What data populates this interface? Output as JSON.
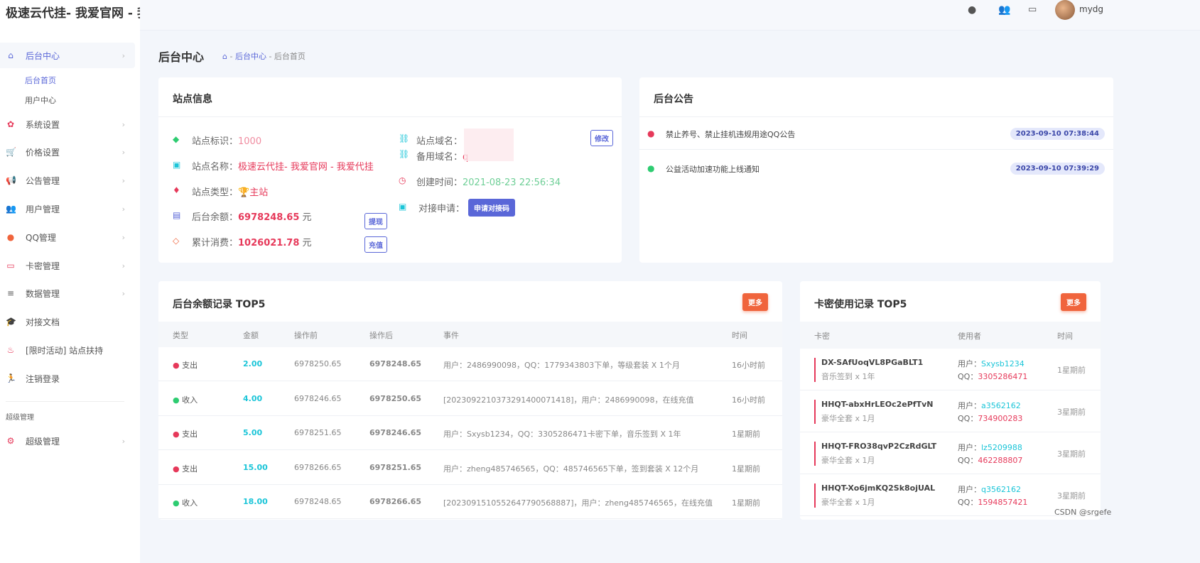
{
  "brand": "极速云代挂- 我爱官网 - 我爱代挂",
  "header": {
    "icons": [
      "qq-icon",
      "users-icon",
      "card-icon"
    ],
    "username": "mydg"
  },
  "sidebar": {
    "items": [
      {
        "label": "后台中心",
        "icon": "store-icon",
        "active": true,
        "subs": [
          "后台首页",
          "用户中心"
        ]
      },
      {
        "label": "系统设置",
        "icon": "gear-icon"
      },
      {
        "label": "价格设置",
        "icon": "cart-icon"
      },
      {
        "label": "公告管理",
        "icon": "megaphone-icon"
      },
      {
        "label": "用户管理",
        "icon": "users-icon"
      },
      {
        "label": "QQ管理",
        "icon": "qq-icon"
      },
      {
        "label": "卡密管理",
        "icon": "card-icon"
      },
      {
        "label": "数据管理",
        "icon": "list-icon"
      },
      {
        "label": "对接文档",
        "icon": "graduation-cap-icon"
      },
      {
        "label": "[限时活动] 站点扶持",
        "icon": "cake-icon"
      },
      {
        "label": "注销登录",
        "icon": "run-icon"
      }
    ],
    "section": "超级管理",
    "super": {
      "label": "超级管理",
      "icon": "cogs-icon"
    }
  },
  "page": {
    "title": "后台中心",
    "breadcrumb": [
      "后台中心",
      "后台首页"
    ]
  },
  "site": {
    "title": "站点信息",
    "id_label": "站点标识：",
    "id": "1000",
    "name_label": "站点名称：",
    "name": "极速云代挂- 我爱官网 - 我爱代挂",
    "type_label": "站点类型：",
    "type": "主站",
    "balance_label": "后台余额：",
    "balance": "6978248.65",
    "unit": "元",
    "spent_label": "累计消费：",
    "spent": "1026021.78",
    "withdraw": "提现",
    "recharge": "充值",
    "domain_label": "站点域名：",
    "backup_label": "备用域名：",
    "backup_value": "q",
    "edit": "修改",
    "created_label": "创建时间：",
    "created": "2021-08-23 22:56:34",
    "dock_label": "对接申请：",
    "dock_btn": "申请对接码"
  },
  "notice": {
    "title": "后台公告",
    "items": [
      {
        "text": "禁止养号、禁止挂机违规用途QQ公告",
        "time": "2023-09-10 07:38:44",
        "color": "#e6395a"
      },
      {
        "text": "公益活动加速功能上线通知",
        "time": "2023-09-10 07:39:29",
        "color": "#2ecc71"
      }
    ]
  },
  "balance_log": {
    "title": "后台余额记录 TOP5",
    "more": "更多",
    "headers": [
      "类型",
      "金额",
      "操作前",
      "操作后",
      "事件",
      "时间"
    ],
    "rows": [
      {
        "type": "支出",
        "kind": "out",
        "amount": "2.00",
        "before": "6978250.65",
        "after": "6978248.65",
        "event": "用户：2486990098，QQ：1779343803下单，等级套装 X 1个月",
        "time": "16小时前"
      },
      {
        "type": "收入",
        "kind": "in",
        "amount": "4.00",
        "before": "6978246.65",
        "after": "6978250.65",
        "event": "[2023092210373291400071418]，用户：2486990098，在线充值",
        "time": "16小时前"
      },
      {
        "type": "支出",
        "kind": "out",
        "amount": "5.00",
        "before": "6978251.65",
        "after": "6978246.65",
        "event": "用户：Sxysb1234，QQ：3305286471卡密下单，音乐签到 X 1年",
        "time": "1星期前"
      },
      {
        "type": "支出",
        "kind": "out",
        "amount": "15.00",
        "before": "6978266.65",
        "after": "6978251.65",
        "event": "用户：zheng485746565，QQ：485746565下单，签到套装 X 12个月",
        "time": "1星期前"
      },
      {
        "type": "收入",
        "kind": "in",
        "amount": "18.00",
        "before": "6978248.65",
        "after": "6978266.65",
        "event": "[2023091510552647790568887]，用户：zheng485746565，在线充值",
        "time": "1星期前"
      }
    ]
  },
  "card_log": {
    "title": "卡密使用记录 TOP5",
    "more": "更多",
    "headers": [
      "卡密",
      "使用者",
      "时间"
    ],
    "user_label": "用户：",
    "qq_label": "QQ：",
    "rows": [
      {
        "code": "DX-SAfUoqVL8PGaBLT1",
        "plan": "音乐签到 x 1年",
        "user": "Sxysb1234",
        "qq": "3305286471",
        "time": "1星期前"
      },
      {
        "code": "HHQT-abxHrLEOc2ePfTvN",
        "plan": "豪华全套 x 1月",
        "user": "a3562162",
        "qq": "734900283",
        "time": "3星期前"
      },
      {
        "code": "HHQT-FRO38qvP2CzRdGLT",
        "plan": "豪华全套 x 1月",
        "user": "lz5209988",
        "qq": "462288807",
        "time": "3星期前"
      },
      {
        "code": "HHQT-Xo6jmKQ2Sk8ojUAL",
        "plan": "豪华全套 x 1月",
        "user": "q3562162",
        "qq": "1594857421",
        "time": "3星期前"
      }
    ]
  },
  "watermark": "CSDN @srgefe",
  "colors": {
    "accent": "#5a67d8",
    "red": "#e6395a",
    "cyan": "#1bc5d8",
    "green": "#2ecc71",
    "orange": "#f0643c"
  }
}
